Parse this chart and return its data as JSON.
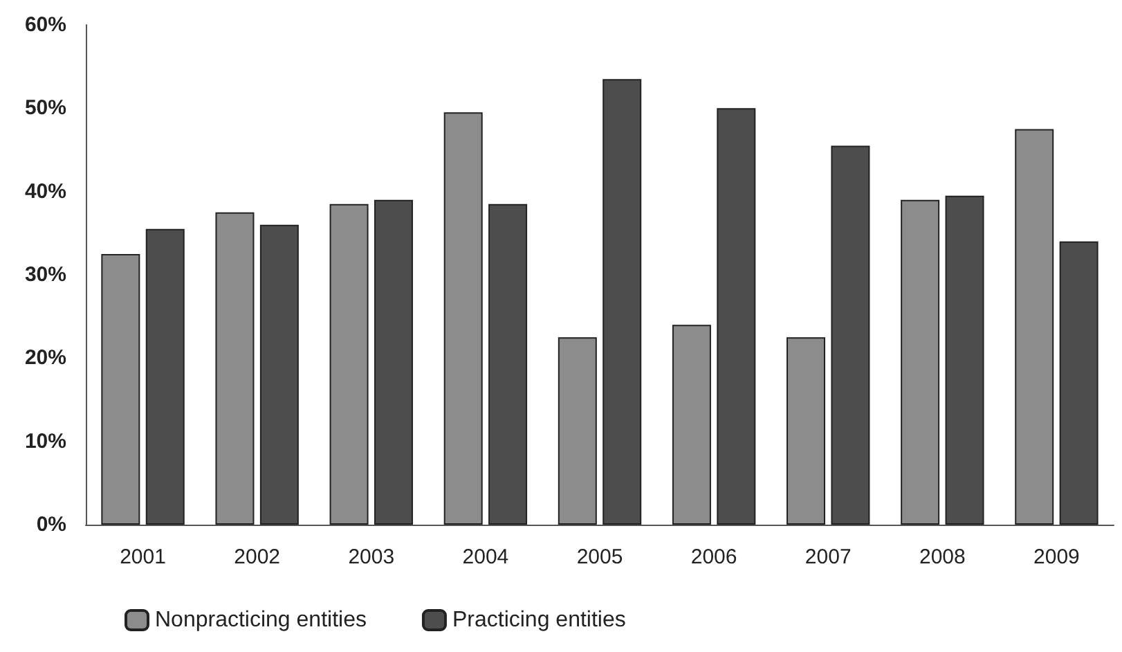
{
  "chart_data": {
    "type": "bar",
    "categories": [
      "2001",
      "2002",
      "2003",
      "2004",
      "2005",
      "2006",
      "2007",
      "2008",
      "2009"
    ],
    "series": [
      {
        "name": "Nonpracticing entities",
        "color": "#8c8c8c",
        "values": [
          32.5,
          37.5,
          38.5,
          49.5,
          22.5,
          24,
          22.5,
          39,
          47.5
        ]
      },
      {
        "name": "Practicing entities",
        "color": "#4d4d4d",
        "values": [
          35.5,
          36,
          39,
          38.5,
          53.5,
          50,
          45.5,
          39.5,
          34
        ]
      }
    ],
    "ylim": [
      0,
      60
    ],
    "yticks": [
      {
        "value": 0,
        "label": "0%"
      },
      {
        "value": 10,
        "label": "10%"
      },
      {
        "value": 20,
        "label": "20%"
      },
      {
        "value": 30,
        "label": "30%"
      },
      {
        "value": 40,
        "label": "40%"
      },
      {
        "value": 50,
        "label": "50%"
      },
      {
        "value": 60,
        "label": "60%"
      }
    ],
    "grid": false,
    "legend": "bottom left"
  }
}
